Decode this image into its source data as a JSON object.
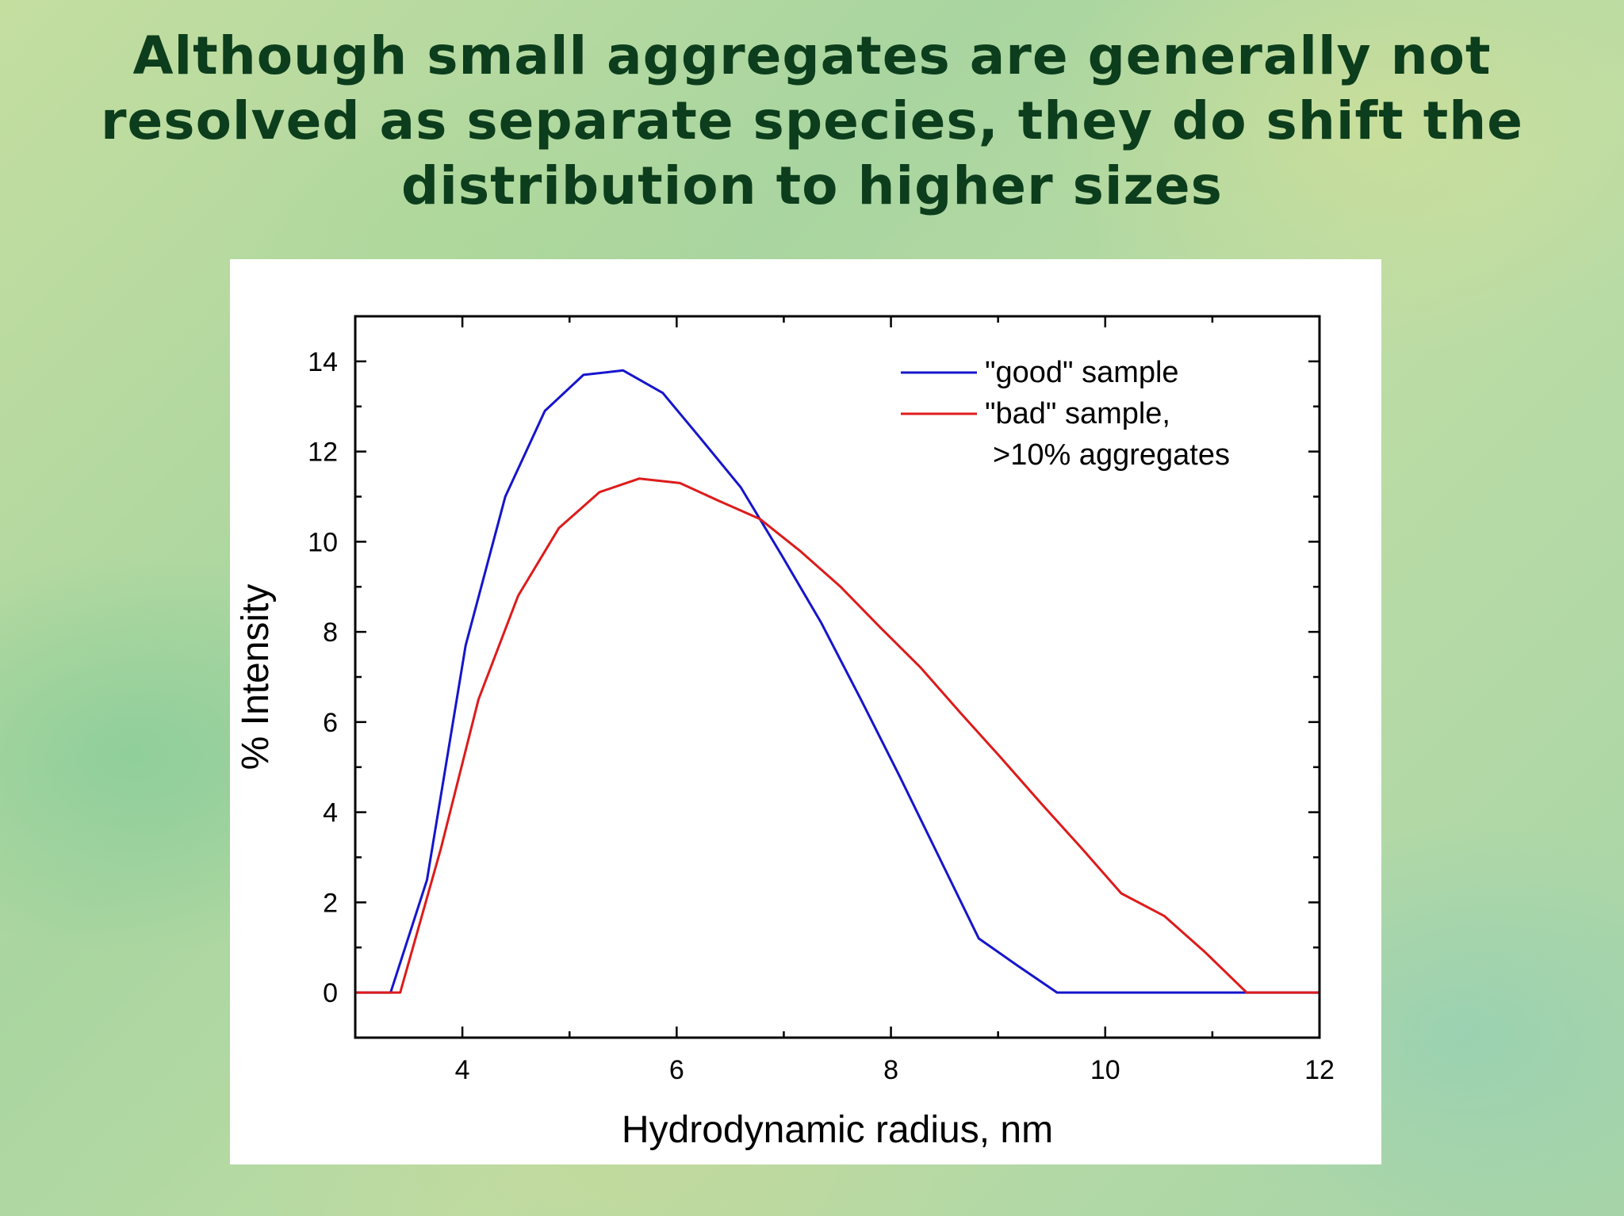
{
  "slide": {
    "title": "Although small aggregates are generally not resolved as separate species, they do shift the distribution to higher sizes"
  },
  "chart_data": {
    "type": "line",
    "xlabel": "Hydrodynamic radius, nm",
    "ylabel": "% Intensity",
    "xlim": [
      3,
      12
    ],
    "ylim": [
      -1,
      15
    ],
    "xticks": [
      4,
      6,
      8,
      10,
      12
    ],
    "yticks": [
      0,
      2,
      4,
      6,
      8,
      10,
      12,
      14
    ],
    "legend_position": "top-right",
    "series": [
      {
        "name": "\"good\" sample",
        "color": "#1515cc",
        "x": [
          3.0,
          3.33,
          3.67,
          4.03,
          4.4,
          4.77,
          5.13,
          5.5,
          5.87,
          6.22,
          6.6,
          6.98,
          7.35,
          7.72,
          8.08,
          8.45,
          8.82,
          9.18,
          9.55,
          10.0,
          11.0,
          12.0
        ],
        "y": [
          0,
          0,
          2.5,
          7.7,
          11.0,
          12.9,
          13.7,
          13.8,
          13.3,
          12.3,
          11.2,
          9.7,
          8.2,
          6.5,
          4.8,
          3.0,
          1.2,
          0.6,
          0,
          0,
          0,
          0
        ]
      },
      {
        "name": "\"bad\" sample,",
        "name_line2": ">10% aggregates",
        "color": "#dd1b1b",
        "x": [
          3.0,
          3.42,
          3.8,
          4.15,
          4.52,
          4.9,
          5.28,
          5.65,
          6.03,
          6.4,
          6.78,
          7.15,
          7.53,
          7.9,
          8.28,
          8.65,
          9.03,
          9.4,
          9.78,
          10.15,
          10.55,
          10.93,
          11.32,
          12.0
        ],
        "y": [
          0,
          0,
          3.2,
          6.5,
          8.8,
          10.3,
          11.1,
          11.4,
          11.3,
          10.9,
          10.5,
          9.8,
          9.0,
          8.1,
          7.2,
          6.2,
          5.2,
          4.2,
          3.2,
          2.2,
          1.7,
          0.9,
          0,
          0
        ]
      }
    ]
  }
}
